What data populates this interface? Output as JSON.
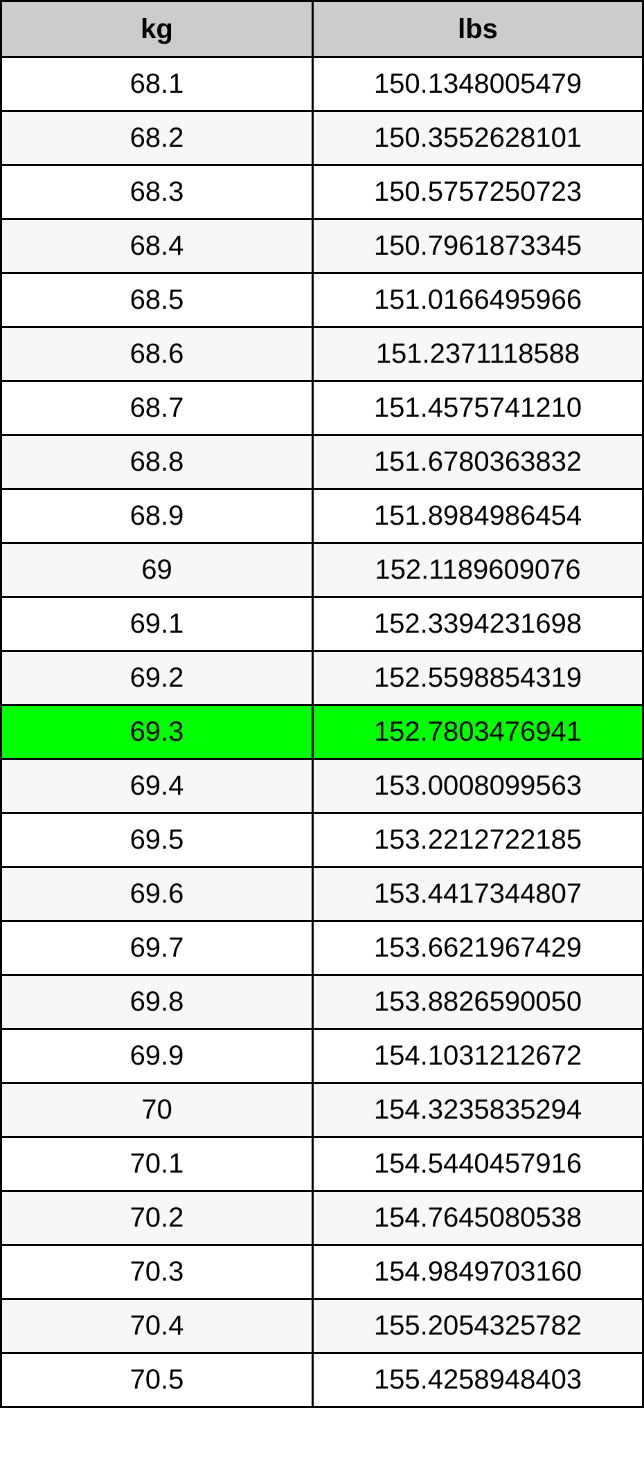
{
  "table": {
    "headers": [
      "kg",
      "lbs"
    ],
    "highlight_color": "#00ff00",
    "highlighted_row": 12,
    "rows": [
      [
        "68.1",
        "150.1348005479"
      ],
      [
        "68.2",
        "150.3552628101"
      ],
      [
        "68.3",
        "150.5757250723"
      ],
      [
        "68.4",
        "150.7961873345"
      ],
      [
        "68.5",
        "151.0166495966"
      ],
      [
        "68.6",
        "151.2371118588"
      ],
      [
        "68.7",
        "151.4575741210"
      ],
      [
        "68.8",
        "151.6780363832"
      ],
      [
        "68.9",
        "151.8984986454"
      ],
      [
        "69",
        "152.1189609076"
      ],
      [
        "69.1",
        "152.3394231698"
      ],
      [
        "69.2",
        "152.5598854319"
      ],
      [
        "69.3",
        "152.7803476941"
      ],
      [
        "69.4",
        "153.0008099563"
      ],
      [
        "69.5",
        "153.2212722185"
      ],
      [
        "69.6",
        "153.4417344807"
      ],
      [
        "69.7",
        "153.6621967429"
      ],
      [
        "69.8",
        "153.8826590050"
      ],
      [
        "69.9",
        "154.1031212672"
      ],
      [
        "70",
        "154.3235835294"
      ],
      [
        "70.1",
        "154.5440457916"
      ],
      [
        "70.2",
        "154.7645080538"
      ],
      [
        "70.3",
        "154.9849703160"
      ],
      [
        "70.4",
        "155.2054325782"
      ],
      [
        "70.5",
        "155.4258948403"
      ]
    ]
  }
}
